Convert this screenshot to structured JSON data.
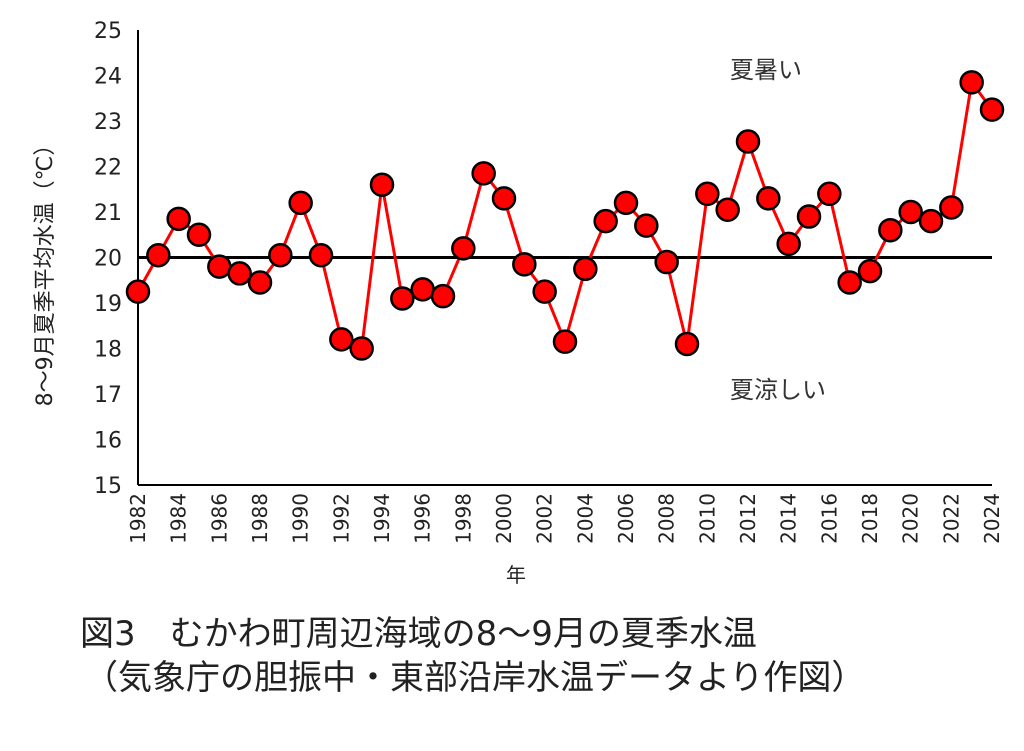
{
  "chart_data": {
    "type": "line",
    "ylabel": "8～9月夏季平均水温（℃）",
    "xlabel": "年",
    "ylim": [
      15,
      25
    ],
    "y_ticks": [
      "15",
      "16",
      "17",
      "18",
      "19",
      "20",
      "21",
      "22",
      "23",
      "24",
      "25"
    ],
    "reference_line": 20,
    "annotations": {
      "upper": "夏暑い",
      "lower": "夏涼しい"
    },
    "x_tick_labels": [
      "1982",
      "1984",
      "1986",
      "1988",
      "1990",
      "1992",
      "1994",
      "1996",
      "1998",
      "2000",
      "2002",
      "2004",
      "2006",
      "2008",
      "2010",
      "2012",
      "2014",
      "2016",
      "2018",
      "2020",
      "2022",
      "2024"
    ],
    "series": [
      {
        "x": [
          1982,
          1983,
          1984,
          1985,
          1986,
          1987,
          1988,
          1989,
          1990,
          1991,
          1992,
          1993,
          1994,
          1995,
          1996,
          1997,
          1998,
          1999,
          2000,
          2001,
          2002,
          2003,
          2004,
          2005,
          2006,
          2007,
          2008,
          2009,
          2010,
          2011,
          2012,
          2013,
          2014,
          2015,
          2016,
          2017,
          2018,
          2019,
          2020,
          2021,
          2022,
          2023,
          2024
        ],
        "values": [
          19.25,
          20.05,
          20.85,
          20.5,
          19.8,
          19.65,
          19.45,
          20.05,
          21.2,
          20.05,
          18.2,
          18.0,
          21.6,
          19.1,
          19.3,
          19.15,
          20.2,
          21.85,
          21.3,
          19.85,
          19.25,
          18.15,
          19.75,
          20.8,
          21.2,
          20.7,
          19.9,
          18.1,
          21.4,
          21.05,
          22.55,
          21.3,
          20.3,
          20.9,
          21.4,
          19.45,
          19.7,
          20.6,
          21.0,
          20.8,
          21.1,
          23.85,
          23.25
        ],
        "line_color": "#ff0000",
        "marker_color": "#ff0000",
        "marker_edge": "#000000"
      }
    ]
  },
  "caption": {
    "line1": "図3　むかわ町周辺海域の8～9月の夏季水温",
    "line2": "（気象庁の胆振中・東部沿岸水温データより作図）"
  }
}
